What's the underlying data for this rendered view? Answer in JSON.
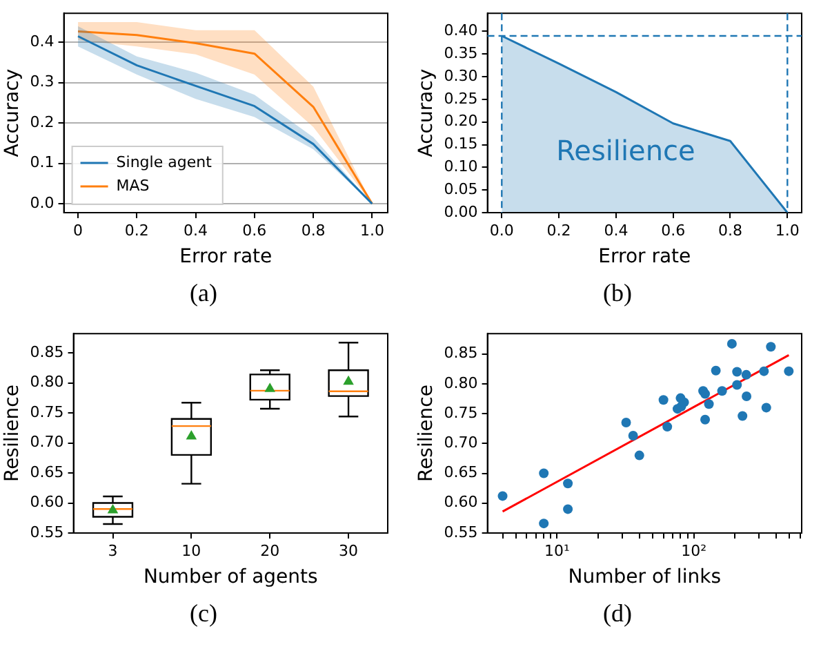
{
  "chart_data": [
    {
      "type": "line",
      "xlabel": "Error rate",
      "ylabel": "Accuracy",
      "x": [
        0,
        0.2,
        0.4,
        0.6,
        0.8,
        1.0
      ],
      "xlim": [
        -0.048,
        1.053
      ],
      "ylim": [
        -0.022,
        0.472
      ],
      "xticks": [
        {
          "value": 0,
          "label": "0"
        },
        {
          "value": 0.2,
          "label": "0.2"
        },
        {
          "value": 0.4,
          "label": "0.4"
        },
        {
          "value": 0.6,
          "label": "0.6"
        },
        {
          "value": 0.8,
          "label": "0.8"
        },
        {
          "value": 1.0,
          "label": "1.0"
        }
      ],
      "yticks": [
        {
          "value": 0,
          "label": "0.0"
        },
        {
          "value": 0.1,
          "label": "0.1"
        },
        {
          "value": 0.2,
          "label": "0.2"
        },
        {
          "value": 0.3,
          "label": "0.3"
        },
        {
          "value": 0.4,
          "label": "0.4"
        }
      ],
      "grid": "y",
      "legend": "bottom left",
      "annotations": [
        "(a)"
      ],
      "series": [
        {
          "name": "Single agent",
          "color": "#1f77b4",
          "values": [
            0.415,
            0.343,
            0.292,
            0.242,
            0.148,
            0
          ],
          "lower": [
            0.39,
            0.32,
            0.26,
            0.215,
            0.135,
            0
          ],
          "upper": [
            0.44,
            0.365,
            0.325,
            0.27,
            0.165,
            0
          ]
        },
        {
          "name": "MAS",
          "color": "#ff7f0e",
          "values": [
            0.427,
            0.418,
            0.398,
            0.372,
            0.24,
            0
          ],
          "lower": [
            0.405,
            0.39,
            0.37,
            0.32,
            0.19,
            0
          ],
          "upper": [
            0.45,
            0.45,
            0.43,
            0.43,
            0.29,
            0
          ]
        }
      ]
    },
    {
      "type": "area",
      "xlabel": "Error rate",
      "ylabel": "Accuracy",
      "xlim": [
        -0.05,
        1.05
      ],
      "ylim": [
        0,
        0.44
      ],
      "xticks": [
        {
          "value": 0,
          "label": "0.0"
        },
        {
          "value": 0.2,
          "label": "0.2"
        },
        {
          "value": 0.4,
          "label": "0.4"
        },
        {
          "value": 0.6,
          "label": "0.6"
        },
        {
          "value": 0.8,
          "label": "0.8"
        },
        {
          "value": 1.0,
          "label": "1.0"
        }
      ],
      "yticks": [
        {
          "value": 0,
          "label": "0.00"
        },
        {
          "value": 0.05,
          "label": "0.05"
        },
        {
          "value": 0.1,
          "label": "0.10"
        },
        {
          "value": 0.15,
          "label": "0.15"
        },
        {
          "value": 0.2,
          "label": "0.20"
        },
        {
          "value": 0.25,
          "label": "0.25"
        },
        {
          "value": 0.3,
          "label": "0.30"
        },
        {
          "value": 0.35,
          "label": "0.35"
        },
        {
          "value": 0.4,
          "label": "0.40"
        }
      ],
      "annotations": [
        "Resilience",
        "(b)"
      ],
      "ref_lines": [
        {
          "axis": "x",
          "value": 0,
          "color": "#1f77b4",
          "line_style": "dashed"
        },
        {
          "axis": "x",
          "value": 1,
          "color": "#1f77b4",
          "line_style": "dashed"
        },
        {
          "axis": "y",
          "value": 0.39,
          "color": "#1f77b4",
          "line_style": "dashed"
        }
      ],
      "series": [
        {
          "color": "#1f77b4",
          "x": [
            0,
            0.2,
            0.4,
            0.6,
            0.8,
            1.0
          ],
          "values": [
            0.39,
            0.329,
            0.266,
            0.197,
            0.158,
            0
          ]
        }
      ]
    },
    {
      "type": "box",
      "xlabel": "Number of agents",
      "ylabel": "Resilience",
      "categories": [
        "3",
        "10",
        "20",
        "30"
      ],
      "ylim": [
        0.55,
        0.882
      ],
      "yticks": [
        {
          "value": 0.55,
          "label": "0.55"
        },
        {
          "value": 0.6,
          "label": "0.60"
        },
        {
          "value": 0.65,
          "label": "0.65"
        },
        {
          "value": 0.7,
          "label": "0.70"
        },
        {
          "value": 0.75,
          "label": "0.75"
        },
        {
          "value": 0.8,
          "label": "0.80"
        },
        {
          "value": 0.85,
          "label": "0.85"
        }
      ],
      "annotations": [
        "(c)"
      ],
      "boxes": [
        {
          "low": 0.565,
          "q1": 0.577,
          "median": 0.59,
          "q3": 0.6,
          "high": 0.611
        },
        {
          "low": 0.632,
          "q1": 0.68,
          "median": 0.728,
          "q3": 0.74,
          "high": 0.767
        },
        {
          "low": 0.757,
          "q1": 0.772,
          "median": 0.787,
          "q3": 0.814,
          "high": 0.821
        },
        {
          "low": 0.744,
          "q1": 0.778,
          "median": 0.786,
          "q3": 0.821,
          "high": 0.867
        }
      ],
      "series": [
        {
          "type": "scatter",
          "marker": "triangle",
          "color": "#2ca02c",
          "x": [
            "3",
            "10",
            "20",
            "30"
          ],
          "values": [
            0.588,
            0.711,
            0.79,
            0.802
          ]
        }
      ]
    },
    {
      "type": "scatter",
      "xlabel": "Number of links",
      "ylabel": "Resilience",
      "log": "x",
      "xlim": [
        3.1,
        615
      ],
      "ylim": [
        0.55,
        0.884
      ],
      "xticks": [
        {
          "value": 4,
          "label": null
        },
        {
          "value": 5,
          "label": null
        },
        {
          "value": 6,
          "label": null
        },
        {
          "value": 7,
          "label": null
        },
        {
          "value": 8,
          "label": null
        },
        {
          "value": 9,
          "label": null
        },
        {
          "value": 10,
          "label": "10¹"
        },
        {
          "value": 20,
          "label": null
        },
        {
          "value": 30,
          "label": null
        },
        {
          "value": 40,
          "label": null
        },
        {
          "value": 50,
          "label": null
        },
        {
          "value": 60,
          "label": null
        },
        {
          "value": 70,
          "label": null
        },
        {
          "value": 80,
          "label": null
        },
        {
          "value": 90,
          "label": null
        },
        {
          "value": 100,
          "label": "10²"
        },
        {
          "value": 200,
          "label": null
        },
        {
          "value": 300,
          "label": null
        },
        {
          "value": 400,
          "label": null
        },
        {
          "value": 500,
          "label": null
        },
        {
          "value": 600,
          "label": null
        }
      ],
      "yticks": [
        {
          "value": 0.55,
          "label": "0.55"
        },
        {
          "value": 0.6,
          "label": "0.60"
        },
        {
          "value": 0.65,
          "label": "0.65"
        },
        {
          "value": 0.7,
          "label": "0.70"
        },
        {
          "value": 0.75,
          "label": "0.75"
        },
        {
          "value": 0.8,
          "label": "0.80"
        },
        {
          "value": 0.85,
          "label": "0.85"
        }
      ],
      "annotations": [
        "(d)"
      ],
      "series": [
        {
          "color": "#1f77b4",
          "marker": "circle",
          "x": [
            4,
            8,
            8,
            12,
            12,
            32,
            36,
            40,
            60,
            64,
            76,
            80,
            81,
            85,
            117,
            121,
            121,
            129,
            145,
            161,
            190,
            207,
            207,
            227,
            242,
            243,
            326,
            339,
            366,
            495
          ],
          "values": [
            0.612,
            0.65,
            0.566,
            0.633,
            0.59,
            0.735,
            0.713,
            0.68,
            0.773,
            0.728,
            0.758,
            0.776,
            0.762,
            0.769,
            0.788,
            0.783,
            0.74,
            0.766,
            0.822,
            0.788,
            0.867,
            0.82,
            0.798,
            0.746,
            0.815,
            0.779,
            0.821,
            0.76,
            0.862,
            0.821
          ]
        },
        {
          "type": "line",
          "color": "#ff0000",
          "x": [
            4,
            495
          ],
          "values": [
            0.586,
            0.848
          ]
        }
      ]
    }
  ]
}
